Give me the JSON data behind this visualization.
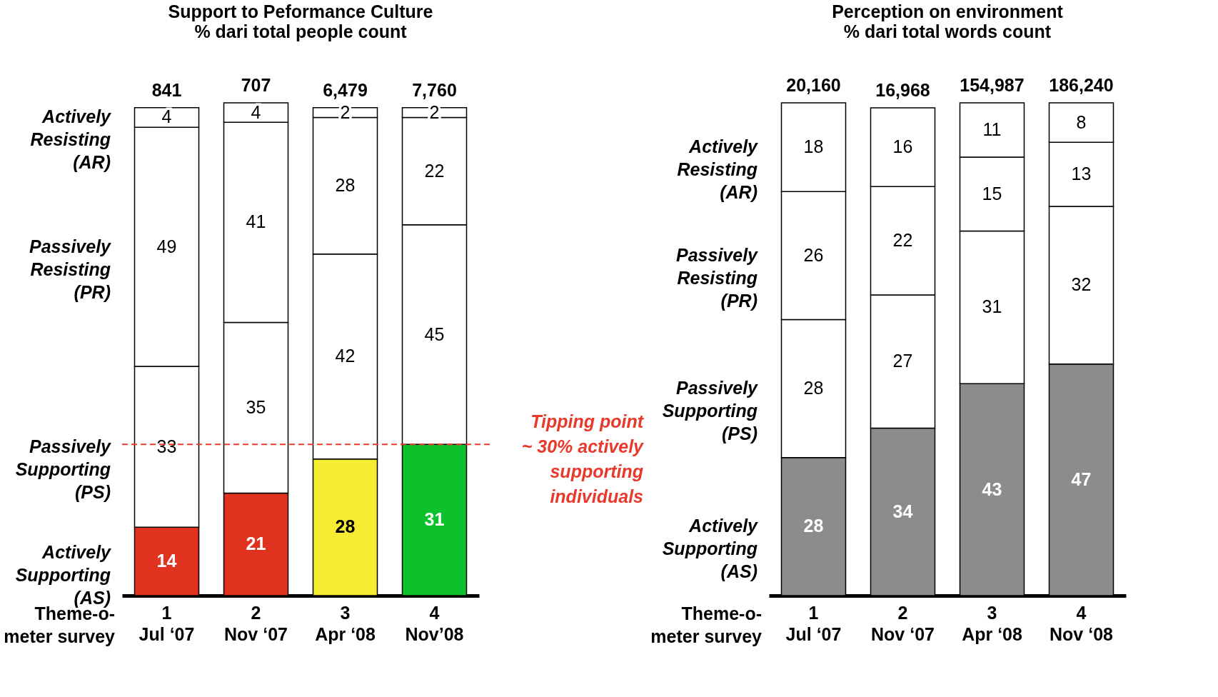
{
  "chart_data": [
    {
      "type": "bar",
      "title": "Support to Peformance Culture",
      "subtitle": "% dari total people count",
      "xlabel": "Theme-o-meter survey",
      "categories": [
        "1\nJul ‘07",
        "2\nNov ‘07",
        "3\nApr ‘08",
        "4\nNov’08"
      ],
      "stacked": true,
      "data_labels": true,
      "legend": false,
      "tick_labels": "x",
      "series": [
        {
          "name": "Actively Supporting (AS)",
          "colors": [
            "#e0331f",
            "#e0331f",
            "#f6ec33",
            "#0cc12c"
          ],
          "values": [
            14,
            21,
            28,
            31
          ]
        },
        {
          "name": "Passively Supporting (PS)",
          "color": "#ffffff",
          "values": [
            33,
            35,
            42,
            45
          ]
        },
        {
          "name": "Passively Resisting (PR)",
          "color": "#ffffff",
          "values": [
            49,
            41,
            28,
            22
          ]
        },
        {
          "name": "Actively Resisting (AR)",
          "color": "#ffffff",
          "values": [
            4,
            4,
            2,
            2
          ]
        }
      ],
      "ref_lines": [
        {
          "axis": "y",
          "value": 31,
          "color": "#e8392b",
          "line_style": "dashed"
        }
      ],
      "annotations": [
        "Tipping point ~ 30% actively supporting individuals",
        "841",
        "707",
        "6,479",
        "7,760"
      ]
    },
    {
      "type": "bar",
      "title": "Perception on environment",
      "subtitle": "% dari total words count",
      "xlabel": "Theme-o-meter survey",
      "categories": [
        "1\nJul ‘07",
        "2\nNov ‘07",
        "3\nApr ‘08",
        "4\nNov ‘08"
      ],
      "stacked": true,
      "data_labels": true,
      "legend": false,
      "tick_labels": "x",
      "annotations": [
        "20,160",
        "16,968",
        "154,987",
        "186,240"
      ],
      "series": [
        {
          "name": "Actively Supporting (AS)",
          "color": "#8c8c8c",
          "values": [
            28,
            34,
            43,
            47
          ]
        },
        {
          "name": "Passively Supporting (PS)",
          "color": "#ffffff",
          "values": [
            28,
            27,
            31,
            32
          ]
        },
        {
          "name": "Passively Resisting (PR)",
          "color": "#ffffff",
          "values": [
            26,
            22,
            15,
            13
          ]
        },
        {
          "name": "Actively Resisting (AR)",
          "color": "#ffffff",
          "values": [
            18,
            16,
            11,
            8
          ]
        }
      ]
    }
  ]
}
